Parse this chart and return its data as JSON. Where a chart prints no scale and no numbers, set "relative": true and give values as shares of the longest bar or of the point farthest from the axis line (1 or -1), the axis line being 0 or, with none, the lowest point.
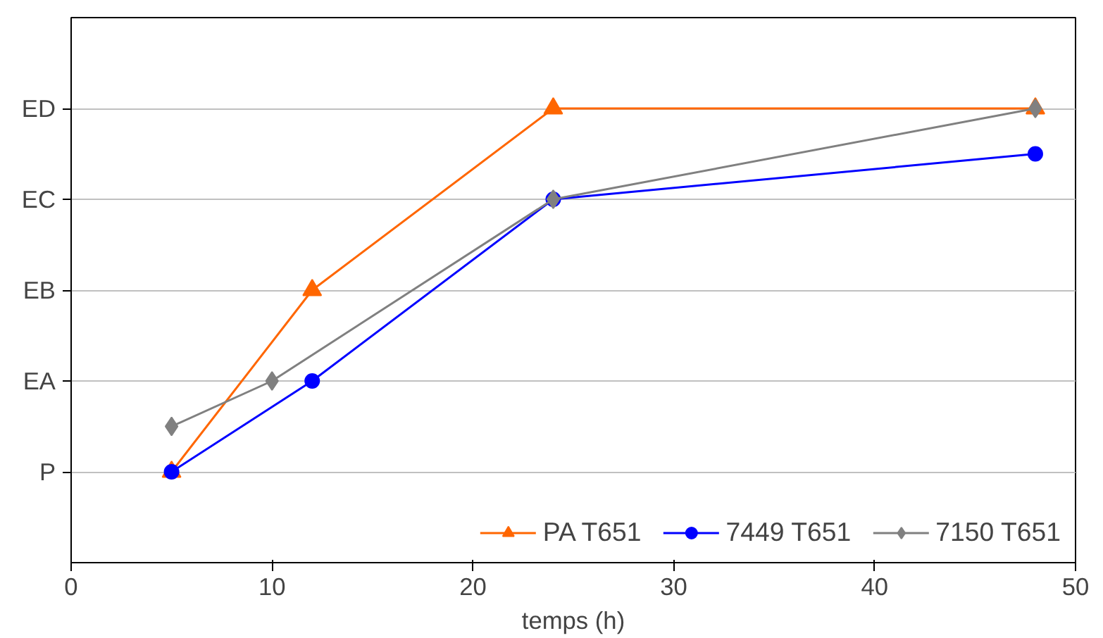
{
  "chart_data": {
    "type": "line",
    "relative": true,
    "xlabel": "temps (h)",
    "xlim": [
      0,
      50
    ],
    "xticks": [
      0,
      10,
      20,
      30,
      40,
      50
    ],
    "y_categories": [
      "ED",
      "EC",
      "EB",
      "EA",
      "P"
    ],
    "grid": "y",
    "legend": "bottom right",
    "series": [
      {
        "name": "PA T651",
        "color": "#ff6600",
        "marker": "triangle",
        "x": [
          5,
          12,
          24,
          48
        ],
        "values": [
          0.2,
          0.6,
          1,
          1
        ]
      },
      {
        "name": "7449 T651",
        "color": "#0000ff",
        "marker": "circle",
        "x": [
          5,
          12,
          24,
          48
        ],
        "values": [
          0.2,
          0.4,
          0.8,
          0.9
        ]
      },
      {
        "name": "7150 T651",
        "color": "#808080",
        "marker": "diamond",
        "x": [
          5,
          10,
          24,
          48
        ],
        "values": [
          0.3,
          0.4,
          0.8,
          1
        ]
      }
    ]
  }
}
